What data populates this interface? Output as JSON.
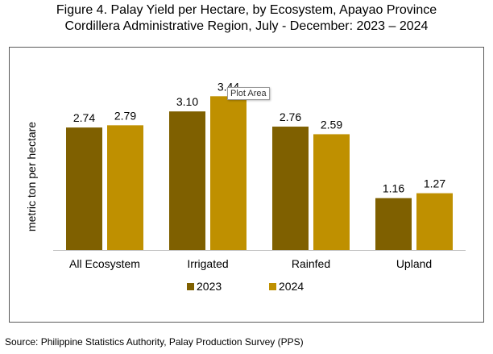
{
  "header": {
    "title_line1": "Figure 4. Palay Yield per Hectare, by Ecosystem, Apayao Province",
    "title_line2": "Cordillera Administrative Region, July - December: 2023 – 2024"
  },
  "tooltip": {
    "text": "Plot Area"
  },
  "footer": {
    "source": "Source: Philippine Statistics Authority, Palay Production Survey (PPS)"
  },
  "chart_data": {
    "type": "bar",
    "title": "Figure 4. Palay Yield per Hectare, by Ecosystem, Apayao Province Cordillera Administrative Region, July - December: 2023 – 2024",
    "categories": [
      "All Ecosystem",
      "Irrigated",
      "Rainfed",
      "Upland"
    ],
    "series": [
      {
        "name": "2023",
        "color": "#7f6000",
        "values": [
          2.74,
          3.1,
          2.76,
          1.16
        ],
        "labels": [
          "2.74",
          "3.10",
          "2.76",
          "1.16"
        ]
      },
      {
        "name": "2024",
        "color": "#bf9000",
        "values": [
          2.79,
          3.44,
          2.59,
          1.27
        ],
        "labels": [
          "2.79",
          "3.44",
          "2.59",
          "1.27"
        ]
      }
    ],
    "xlabel": "",
    "ylabel": "metric ton per hectare",
    "ylim": [
      0,
      3.5
    ],
    "grid": false,
    "legend": "bottom"
  }
}
